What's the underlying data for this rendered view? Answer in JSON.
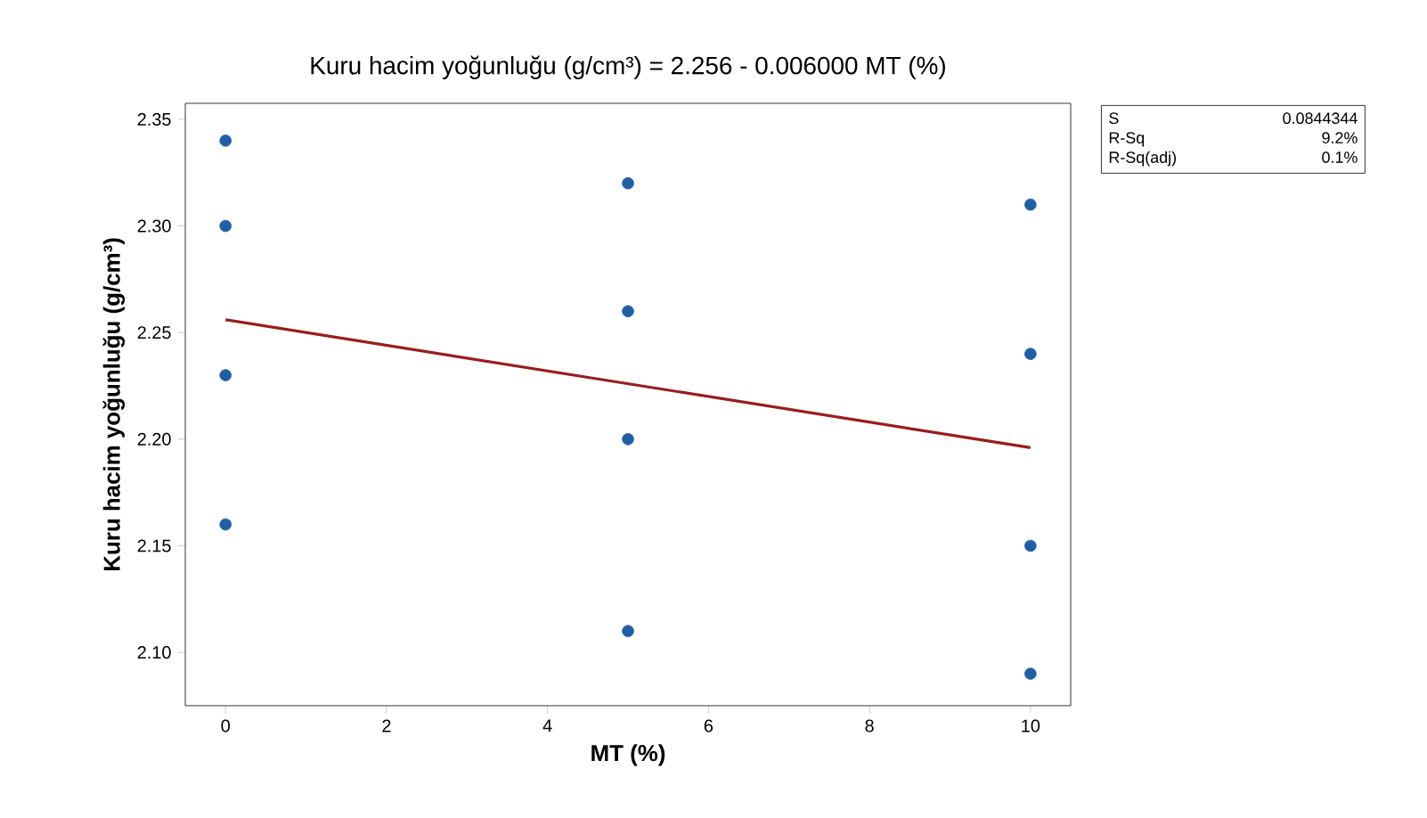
{
  "chart_data": {
    "type": "scatter",
    "title": "Kuru hacim yoğunluğu (g/cm³) = 2.256 - 0.006000 MT (%)",
    "xlabel": "MT (%)",
    "ylabel": "Kuru hacim yoğunluğu (g/cm³)",
    "xlim": [
      -0.5,
      10.5
    ],
    "ylim": [
      2.075,
      2.3575
    ],
    "xticks": [
      0,
      2,
      4,
      6,
      8,
      10
    ],
    "yticks": [
      {
        "value": 2.1,
        "label": "2.10"
      },
      {
        "value": 2.15,
        "label": "2.15"
      },
      {
        "value": 2.2,
        "label": "2.20"
      },
      {
        "value": 2.25,
        "label": "2.25"
      },
      {
        "value": 2.3,
        "label": "2.30"
      },
      {
        "value": 2.35,
        "label": "2.35"
      }
    ],
    "series": [
      {
        "marker": "circle",
        "color": "#1f5fa8",
        "x": [
          0,
          0,
          0,
          0,
          5,
          5,
          5,
          5,
          10,
          10,
          10,
          10
        ],
        "values": [
          2.34,
          2.3,
          2.23,
          2.16,
          2.32,
          2.26,
          2.2,
          2.11,
          2.31,
          2.24,
          2.15,
          2.09
        ]
      },
      {
        "type": "line",
        "marker": "none",
        "color": "#9b1c1c",
        "x": [
          0,
          10
        ],
        "values": [
          2.256,
          2.196
        ]
      }
    ],
    "annotations": [
      "S",
      "0.0844344",
      "R-Sq",
      "9.2%",
      "R-Sq(adj)",
      "0.1%"
    ]
  }
}
